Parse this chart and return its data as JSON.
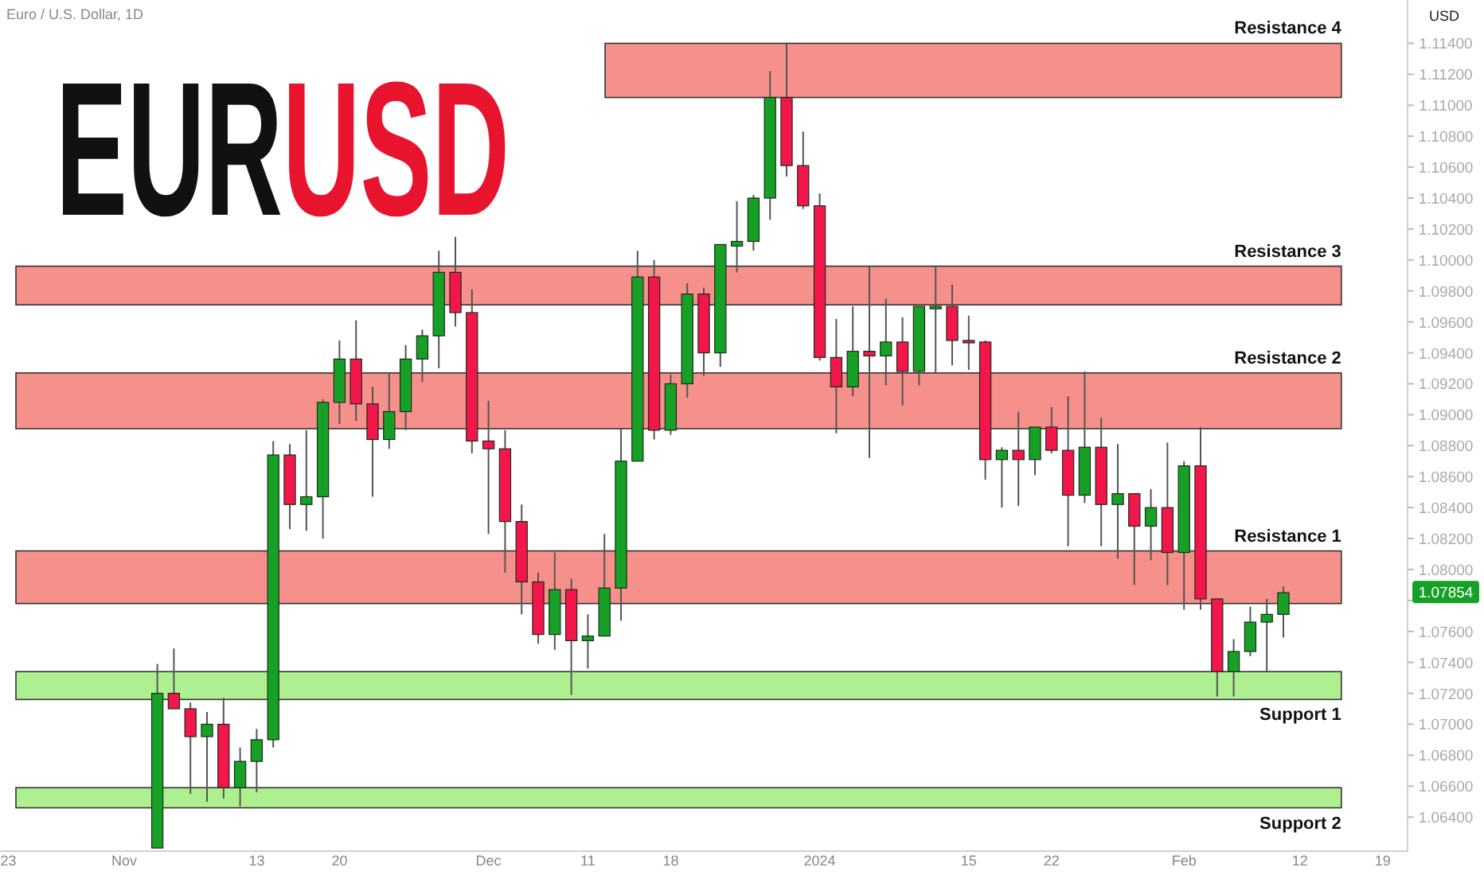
{
  "chart_data": {
    "type": "candlestick",
    "title": "EURUSD",
    "subtitle": "Euro / U.S. Dollar, 1D",
    "ylabel": "USD",
    "categories": [
      "23",
      null,
      null,
      null,
      null,
      null,
      null,
      "Nov",
      null,
      null,
      null,
      null,
      null,
      null,
      null,
      "13",
      null,
      null,
      null,
      null,
      "20",
      null,
      null,
      null,
      null,
      null,
      null,
      null,
      null,
      "Dec",
      null,
      null,
      null,
      null,
      null,
      "11",
      null,
      null,
      null,
      null,
      "18",
      null,
      null,
      null,
      null,
      null,
      null,
      null,
      null,
      "2024",
      null,
      null,
      null,
      null,
      null,
      null,
      null,
      null,
      "15",
      null,
      null,
      null,
      null,
      "22",
      null,
      null,
      null,
      null,
      null,
      null,
      null,
      "Feb",
      null,
      null,
      null,
      null,
      null,
      null,
      "12",
      null,
      null,
      null,
      null,
      "19",
      null
    ],
    "colors": [
      null,
      null,
      null,
      null,
      null,
      null,
      null,
      null,
      null,
      "#16a025",
      "#f2164b",
      "#f2164b",
      "#16a025",
      "#f2164b",
      "#16a025",
      "#16a025",
      "#16a025",
      "#f2164b",
      "#16a025",
      "#16a025",
      "#16a025",
      "#f2164b",
      "#f2164b",
      "#16a025",
      "#16a025",
      "#16a025",
      "#16a025",
      "#f2164b",
      "#f2164b",
      "#f2164b",
      "#f2164b",
      "#f2164b",
      "#f2164b",
      "#16a025",
      "#f2164b",
      "#16a025",
      "#16a025",
      "#16a025",
      "#16a025",
      "#f2164b",
      "#16a025",
      "#16a025",
      "#f2164b",
      "#16a025",
      "#16a025",
      "#16a025",
      "#16a025",
      "#f2164b",
      "#f2164b",
      "#f2164b",
      "#f2164b",
      "#16a025",
      "#f2164b",
      "#16a025",
      "#f2164b",
      "#16a025",
      "#16a025",
      "#f2164b",
      "#f2164b",
      "#f2164b",
      "#16a025",
      "#f2164b",
      "#16a025",
      "#f2164b",
      "#f2164b",
      "#16a025",
      "#f2164b",
      "#16a025",
      "#f2164b",
      "#16a025",
      "#f2164b",
      "#16a025",
      "#f2164b",
      "#f2164b",
      "#16a025",
      "#16a025",
      "#16a025",
      "#16a025",
      null,
      null,
      null,
      null,
      null,
      null,
      null
    ],
    "ohlc": [
      null,
      null,
      null,
      null,
      null,
      null,
      null,
      null,
      null,
      [
        1.062,
        1.0739,
        1.062,
        1.072
      ],
      [
        1.072,
        1.0749,
        1.071,
        1.071
      ],
      [
        1.071,
        1.0714,
        1.0655,
        1.0692
      ],
      [
        1.0692,
        1.0708,
        1.065,
        1.07
      ],
      [
        1.07,
        1.0717,
        1.0652,
        1.0659
      ],
      [
        1.0659,
        1.0685,
        1.0647,
        1.0676
      ],
      [
        1.0676,
        1.0697,
        1.0656,
        1.069
      ],
      [
        1.069,
        1.0883,
        1.0685,
        1.0874
      ],
      [
        1.0874,
        1.0881,
        1.0826,
        1.0842
      ],
      [
        1.0842,
        1.089,
        1.0825,
        1.0847
      ],
      [
        1.0847,
        1.091,
        1.082,
        1.0908
      ],
      [
        1.0908,
        1.0948,
        1.0894,
        1.0936
      ],
      [
        1.0936,
        1.0961,
        1.0896,
        1.0907
      ],
      [
        1.0907,
        1.0918,
        1.0847,
        1.0884
      ],
      [
        1.0884,
        1.0927,
        1.0878,
        1.0902
      ],
      [
        1.0902,
        1.0945,
        1.089,
        1.0936
      ],
      [
        1.0936,
        1.0955,
        1.0921,
        1.0951
      ],
      [
        1.0951,
        1.1006,
        1.093,
        1.0992
      ],
      [
        1.0992,
        1.1015,
        1.0957,
        1.0966
      ],
      [
        1.0966,
        1.0981,
        1.0875,
        1.0883
      ],
      [
        1.0883,
        1.0909,
        1.0823,
        1.0878
      ],
      [
        1.0878,
        1.089,
        1.0798,
        1.0831
      ],
      [
        1.0831,
        1.0842,
        1.0771,
        1.0792
      ],
      [
        1.0792,
        1.0798,
        1.0752,
        1.0758
      ],
      [
        1.0758,
        1.0811,
        1.0748,
        1.0787
      ],
      [
        1.0787,
        1.0794,
        1.0719,
        1.0754
      ],
      [
        1.0754,
        1.0771,
        1.0736,
        1.0757
      ],
      [
        1.0757,
        1.0823,
        1.0757,
        1.0788
      ],
      [
        1.0788,
        1.0891,
        1.0767,
        1.087
      ],
      [
        1.087,
        1.1006,
        1.087,
        1.0989
      ],
      [
        1.0989,
        1.1,
        1.0884,
        1.089
      ],
      [
        1.089,
        1.0926,
        1.0887,
        1.092
      ],
      [
        1.092,
        1.0985,
        1.0911,
        1.0978
      ],
      [
        1.0978,
        1.0982,
        1.0925,
        1.094
      ],
      [
        1.094,
        1.101,
        1.0931,
        1.101
      ],
      [
        1.1009,
        1.1038,
        1.0992,
        1.1012
      ],
      [
        1.1012,
        1.1042,
        1.1006,
        1.104
      ],
      [
        1.104,
        1.1122,
        1.1026,
        1.1105
      ],
      [
        1.1105,
        1.114,
        1.1054,
        1.1061
      ],
      [
        1.1061,
        1.1083,
        1.1033,
        1.1035
      ],
      [
        1.1035,
        1.1043,
        1.0935,
        1.0937
      ],
      [
        1.0937,
        1.0962,
        1.0888,
        1.0918
      ],
      [
        1.0918,
        1.097,
        1.0912,
        1.0941
      ],
      [
        1.0941,
        1.0996,
        1.0872,
        1.0938
      ],
      [
        1.0938,
        1.0975,
        1.0919,
        1.0947
      ],
      [
        1.0947,
        1.0963,
        1.0906,
        1.0928
      ],
      [
        1.0928,
        1.097,
        1.0919,
        1.097
      ],
      [
        1.097,
        1.0996,
        1.0927,
        1.097
      ],
      [
        1.097,
        1.0984,
        1.0932,
        1.0948
      ],
      [
        1.0948,
        1.0964,
        1.0929,
        1.0947
      ],
      [
        1.0947,
        1.0948,
        1.0858,
        1.0871
      ],
      [
        1.0871,
        1.0879,
        1.084,
        1.0877
      ],
      [
        1.0877,
        1.0902,
        1.0841,
        1.0871
      ],
      [
        1.0871,
        1.0892,
        1.0861,
        1.0892
      ],
      [
        1.0892,
        1.0905,
        1.0875,
        1.0877
      ],
      [
        1.0877,
        1.0912,
        1.0815,
        1.0848
      ],
      [
        1.0848,
        1.0928,
        1.0843,
        1.0879
      ],
      [
        1.0879,
        1.0898,
        1.0815,
        1.0842
      ],
      [
        1.0842,
        1.0881,
        1.0807,
        1.0849
      ],
      [
        1.0849,
        1.0849,
        1.079,
        1.0828
      ],
      [
        1.0828,
        1.0852,
        1.0806,
        1.084
      ],
      [
        1.084,
        1.0882,
        1.079,
        1.0811
      ],
      [
        1.0811,
        1.087,
        1.0774,
        1.0867
      ],
      [
        1.0867,
        1.0892,
        1.0774,
        1.0781
      ],
      [
        1.0781,
        1.0781,
        1.0718,
        1.0734
      ],
      [
        1.0734,
        1.0755,
        1.0718,
        1.0747
      ],
      [
        1.0747,
        1.0776,
        1.0744,
        1.0766
      ],
      [
        1.0766,
        1.0781,
        1.0734,
        1.0771
      ],
      [
        1.0771,
        1.0789,
        1.0756,
        1.0785
      ],
      null,
      null,
      null,
      null,
      null,
      null,
      null
    ],
    "ylim": [
      1.0618,
      1.1168
    ],
    "yticks": [
      {
        "value": 1.064,
        "label": "1.06400"
      },
      {
        "value": 1.066,
        "label": "1.06600"
      },
      {
        "value": 1.068,
        "label": "1.06800"
      },
      {
        "value": 1.07,
        "label": "1.07000"
      },
      {
        "value": 1.072,
        "label": "1.07200"
      },
      {
        "value": 1.074,
        "label": "1.07400"
      },
      {
        "value": 1.076,
        "label": "1.07600"
      },
      {
        "value": 1.078,
        "label": null
      },
      {
        "value": 1.08,
        "label": "1.08000"
      },
      {
        "value": 1.082,
        "label": "1.08200"
      },
      {
        "value": 1.084,
        "label": "1.08400"
      },
      {
        "value": 1.086,
        "label": "1.08600"
      },
      {
        "value": 1.088,
        "label": "1.08800"
      },
      {
        "value": 1.09,
        "label": "1.09000"
      },
      {
        "value": 1.092,
        "label": "1.09200"
      },
      {
        "value": 1.094,
        "label": "1.09400"
      },
      {
        "value": 1.096,
        "label": "1.09600"
      },
      {
        "value": 1.098,
        "label": "1.09800"
      },
      {
        "value": 1.1,
        "label": "1.10000"
      },
      {
        "value": 1.102,
        "label": "1.10200"
      },
      {
        "value": 1.104,
        "label": "1.10400"
      },
      {
        "value": 1.106,
        "label": "1.10600"
      },
      {
        "value": 1.108,
        "label": "1.10800"
      },
      {
        "value": 1.11,
        "label": "1.11000"
      },
      {
        "value": 1.112,
        "label": "1.11200"
      },
      {
        "value": 1.114,
        "label": "1.11400"
      }
    ],
    "bands": [
      {
        "axis": "y",
        "from": 1.1105,
        "to": 1.114,
        "label": "Resistance 4",
        "color": "#f5908a"
      },
      {
        "axis": "y",
        "from": 1.0971,
        "to": 1.0996,
        "label": "Resistance 3",
        "color": "#f5908a"
      },
      {
        "axis": "y",
        "from": 1.0891,
        "to": 1.0927,
        "label": "Resistance 2",
        "color": "#f5908a"
      },
      {
        "axis": "y",
        "from": 1.0778,
        "to": 1.0812,
        "label": "Resistance 1",
        "color": "#f5908a"
      },
      {
        "axis": "y",
        "from": 1.0716,
        "to": 1.0734,
        "label": "Support 1",
        "color": "#aef08f"
      },
      {
        "axis": "y",
        "from": 1.0646,
        "to": 1.0659,
        "label": "Support 2",
        "color": "#aef08f"
      }
    ],
    "annotations": [
      {
        "text": "1.07854",
        "y": 1.07854
      }
    ]
  }
}
